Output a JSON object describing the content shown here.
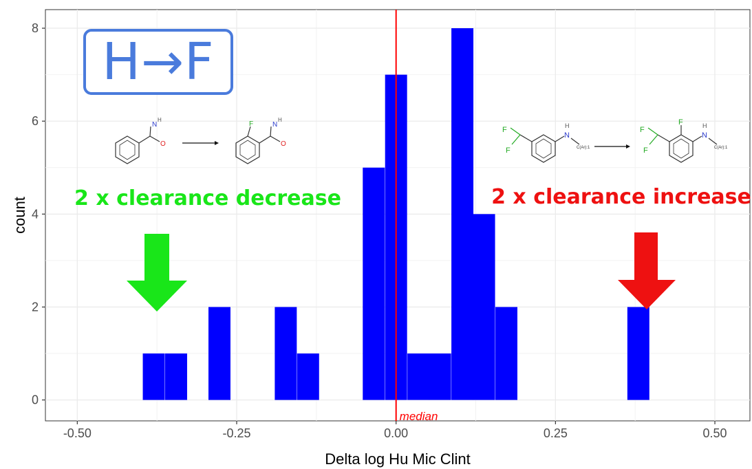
{
  "title_box": {
    "text": "H→F"
  },
  "annotations": {
    "left_text": "2 x clearance decrease",
    "left_color": "#19e619",
    "right_text": "2 x clearance increase",
    "right_color": "#ee1111",
    "median_label": "median"
  },
  "colors": {
    "bars": "#0000ff",
    "median_line": "#ff0000",
    "panel": "#ffffff",
    "grid": "#ebebeb",
    "title_box": "#4a7bdc"
  },
  "molecules": {
    "left": {
      "atoms": [
        "N",
        "H",
        "O",
        "F"
      ]
    },
    "right": {
      "atoms": [
        "F",
        "F",
        "N",
        "H",
        "C(Ar):1"
      ]
    }
  },
  "chart_data": {
    "type": "bar",
    "xlabel": "Delta log Hu Mic Clint",
    "ylabel": "count",
    "xlim": [
      -0.55,
      0.555
    ],
    "ylim": [
      -0.45,
      8.4
    ],
    "x_ticks": [
      -0.5,
      -0.25,
      0.0,
      0.25,
      0.5
    ],
    "x_tick_labels": [
      "-0.50",
      "-0.25",
      "0.00",
      "0.25",
      "0.50"
    ],
    "y_ticks": [
      0,
      2,
      4,
      6,
      8
    ],
    "y_tick_labels": [
      "0",
      "2",
      "4",
      "6",
      "8"
    ],
    "bin_width": 0.0345,
    "bins": [
      {
        "center": -0.38,
        "count": 1
      },
      {
        "center": -0.345,
        "count": 1
      },
      {
        "center": -0.277,
        "count": 2
      },
      {
        "center": -0.173,
        "count": 2
      },
      {
        "center": -0.138,
        "count": 1
      },
      {
        "center": -0.035,
        "count": 5
      },
      {
        "center": 0.0,
        "count": 7
      },
      {
        "center": 0.035,
        "count": 1
      },
      {
        "center": 0.069,
        "count": 1
      },
      {
        "center": 0.104,
        "count": 8
      },
      {
        "center": 0.138,
        "count": 4
      },
      {
        "center": 0.173,
        "count": 2
      },
      {
        "center": 0.38,
        "count": 2
      }
    ],
    "median": 0.0,
    "grid": true
  }
}
